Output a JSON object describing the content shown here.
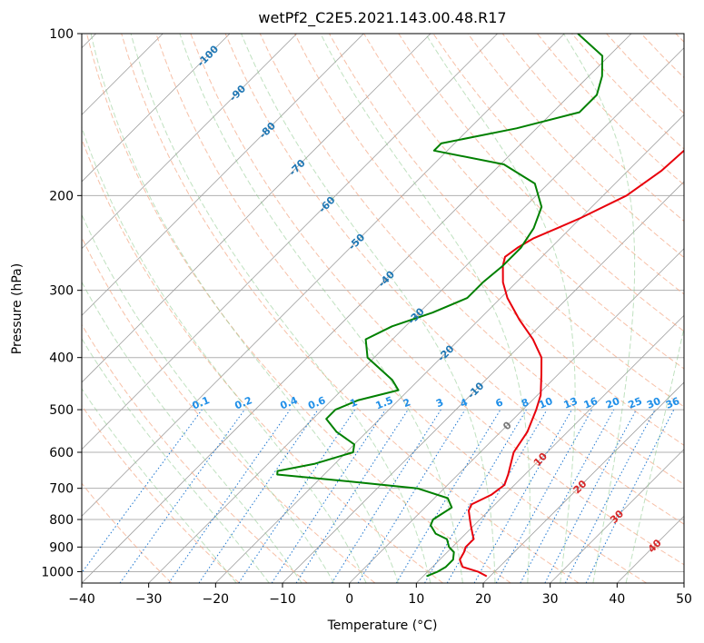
{
  "chart_data": {
    "type": "line",
    "subtype": "skew-t log-p",
    "title": "wetPf2_C2E5.2021.143.00.48.R17",
    "xlabel": "Temperature (°C)",
    "ylabel": "Pressure (hPa)",
    "xlim": [
      -40,
      50
    ],
    "ylim": [
      1050,
      100
    ],
    "x_ticks": [
      -40,
      -30,
      -20,
      -10,
      0,
      10,
      20,
      30,
      40,
      50
    ],
    "y_ticks": [
      100,
      200,
      300,
      400,
      500,
      600,
      700,
      800,
      900,
      1000
    ],
    "isotherm_labels": [
      {
        "text": "-100",
        "t": -100
      },
      {
        "text": "-90",
        "t": -90
      },
      {
        "text": "-80",
        "t": -80
      },
      {
        "text": "-70",
        "t": -70
      },
      {
        "text": "-60",
        "t": -60
      },
      {
        "text": "-50",
        "t": -50
      },
      {
        "text": "-40",
        "t": -40
      },
      {
        "text": "-30",
        "t": -30
      },
      {
        "text": "-20",
        "t": -20
      },
      {
        "text": "-10",
        "t": -10
      },
      {
        "text": "0",
        "t": 0
      },
      {
        "text": "10",
        "t": 10
      },
      {
        "text": "20",
        "t": 20
      },
      {
        "text": "30",
        "t": 30
      },
      {
        "text": "40",
        "t": 40
      }
    ],
    "mixing_ratio_labels": [
      "0.1",
      "0.2",
      "0.4",
      "0.6",
      "1",
      "1.5",
      "2",
      "3",
      "4",
      "6",
      "8",
      "10",
      "13",
      "16",
      "20",
      "25",
      "30",
      "36"
    ],
    "series": [
      {
        "name": "Temperature",
        "color": "#e8000b",
        "points": [
          [
            1020,
            19.5
          ],
          [
            1000,
            17.5
          ],
          [
            980,
            14.5
          ],
          [
            950,
            13.0
          ],
          [
            920,
            12.5
          ],
          [
            900,
            12.0
          ],
          [
            870,
            12.0
          ],
          [
            850,
            11.0
          ],
          [
            820,
            9.5
          ],
          [
            800,
            8.5
          ],
          [
            770,
            7.0
          ],
          [
            750,
            6.5
          ],
          [
            720,
            8.0
          ],
          [
            690,
            8.5
          ],
          [
            660,
            7.5
          ],
          [
            600,
            5.0
          ],
          [
            550,
            4.0
          ],
          [
            500,
            2.0
          ],
          [
            470,
            0.5
          ],
          [
            430,
            -2.5
          ],
          [
            400,
            -5.0
          ],
          [
            370,
            -9.0
          ],
          [
            340,
            -14.0
          ],
          [
            310,
            -19.0
          ],
          [
            290,
            -22.0
          ],
          [
            270,
            -24.5
          ],
          [
            260,
            -25.5
          ],
          [
            250,
            -25.0
          ],
          [
            240,
            -24.0
          ],
          [
            230,
            -22.0
          ],
          [
            220,
            -20.0
          ],
          [
            200,
            -16.5
          ],
          [
            180,
            -15.0
          ],
          [
            160,
            -14.5
          ],
          [
            140,
            -15.0
          ],
          [
            120,
            -16.0
          ],
          [
            110,
            -15.0
          ],
          [
            100,
            -14.0
          ]
        ]
      },
      {
        "name": "Dewpoint",
        "color": "#008000",
        "points": [
          [
            1020,
            10.5
          ],
          [
            1000,
            11.5
          ],
          [
            980,
            12.0
          ],
          [
            950,
            12.0
          ],
          [
            920,
            11.0
          ],
          [
            900,
            9.5
          ],
          [
            870,
            8.0
          ],
          [
            850,
            5.5
          ],
          [
            820,
            3.5
          ],
          [
            800,
            3.0
          ],
          [
            780,
            3.5
          ],
          [
            760,
            4.0
          ],
          [
            730,
            2.0
          ],
          [
            700,
            -4.0
          ],
          [
            680,
            -15.0
          ],
          [
            660,
            -27.0
          ],
          [
            650,
            -27.5
          ],
          [
            630,
            -23.0
          ],
          [
            600,
            -19.0
          ],
          [
            580,
            -20.0
          ],
          [
            550,
            -24.5
          ],
          [
            520,
            -28.0
          ],
          [
            500,
            -28.0
          ],
          [
            480,
            -26.0
          ],
          [
            460,
            -21.5
          ],
          [
            440,
            -24.0
          ],
          [
            400,
            -31.0
          ],
          [
            370,
            -34.0
          ],
          [
            350,
            -32.0
          ],
          [
            330,
            -28.0
          ],
          [
            310,
            -25.0
          ],
          [
            290,
            -25.0
          ],
          [
            270,
            -24.5
          ],
          [
            250,
            -24.5
          ],
          [
            230,
            -25.5
          ],
          [
            210,
            -27.5
          ],
          [
            190,
            -32.0
          ],
          [
            175,
            -39.5
          ],
          [
            165,
            -52.0
          ],
          [
            160,
            -52.0
          ],
          [
            150,
            -43.0
          ],
          [
            140,
            -36.0
          ],
          [
            130,
            -36.0
          ],
          [
            120,
            -38.0
          ],
          [
            110,
            -41.0
          ],
          [
            100,
            -48.0
          ]
        ]
      }
    ]
  }
}
